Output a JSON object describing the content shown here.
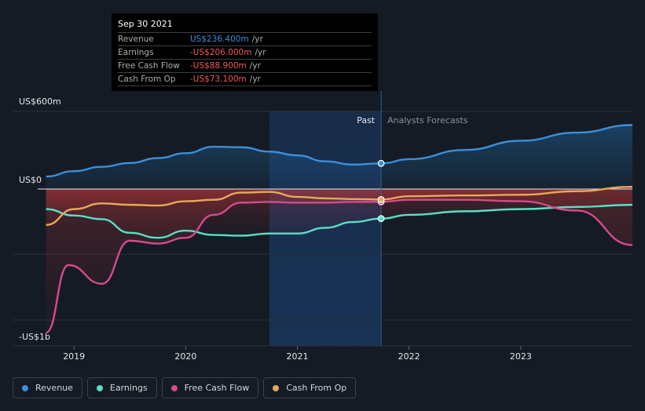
{
  "chart_data": {
    "type": "line",
    "title": "",
    "y_axis_labels": {
      "top": "US$600m",
      "zero": "US$0",
      "bottom": "-US$1b"
    },
    "ylim": [
      -1000,
      600
    ],
    "x_ticks": [
      {
        "label": "2019",
        "x": 2019.0
      },
      {
        "label": "2020",
        "x": 2020.0
      },
      {
        "label": "2021",
        "x": 2021.0
      },
      {
        "label": "2022",
        "x": 2022.0
      },
      {
        "label": "2023",
        "x": 2023.0
      }
    ],
    "xlim": [
      2018.45,
      2024.0
    ],
    "past_label": "Past",
    "forecast_label": "Analysts Forecasts",
    "divider_x": 2021.75,
    "highlight_range": [
      2020.75,
      2021.75
    ],
    "series": [
      {
        "name": "Revenue",
        "color": "#3b8fdc",
        "points": [
          [
            2018.75,
            115
          ],
          [
            2019.0,
            165
          ],
          [
            2019.25,
            205
          ],
          [
            2019.5,
            240
          ],
          [
            2019.75,
            285
          ],
          [
            2020.0,
            330
          ],
          [
            2020.25,
            390
          ],
          [
            2020.5,
            385
          ],
          [
            2020.75,
            345
          ],
          [
            2021.0,
            310
          ],
          [
            2021.25,
            255
          ],
          [
            2021.5,
            225
          ],
          [
            2021.75,
            236.4
          ],
          [
            2022.0,
            275
          ],
          [
            2022.5,
            360
          ],
          [
            2023.0,
            445
          ],
          [
            2023.5,
            520
          ],
          [
            2024.0,
            590
          ]
        ]
      },
      {
        "name": "Earnings",
        "color": "#58e0c6",
        "points": [
          [
            2018.75,
            -140
          ],
          [
            2019.0,
            -185
          ],
          [
            2019.25,
            -210
          ],
          [
            2019.5,
            -305
          ],
          [
            2019.75,
            -340
          ],
          [
            2020.0,
            -290
          ],
          [
            2020.25,
            -320
          ],
          [
            2020.5,
            -325
          ],
          [
            2020.75,
            -310
          ],
          [
            2021.0,
            -310
          ],
          [
            2021.25,
            -270
          ],
          [
            2021.5,
            -230
          ],
          [
            2021.75,
            -206
          ],
          [
            2022.0,
            -180
          ],
          [
            2022.5,
            -155
          ],
          [
            2023.0,
            -140
          ],
          [
            2023.5,
            -125
          ],
          [
            2024.0,
            -110
          ]
        ]
      },
      {
        "name": "Free Cash Flow",
        "color": "#d34b8c",
        "points": [
          [
            2018.75,
            -1000
          ],
          [
            2018.95,
            -530
          ],
          [
            2019.25,
            -660
          ],
          [
            2019.5,
            -360
          ],
          [
            2019.75,
            -380
          ],
          [
            2020.0,
            -340
          ],
          [
            2020.25,
            -180
          ],
          [
            2020.5,
            -95
          ],
          [
            2020.75,
            -90
          ],
          [
            2021.0,
            -95
          ],
          [
            2021.25,
            -95
          ],
          [
            2021.5,
            -90
          ],
          [
            2021.75,
            -88.9
          ],
          [
            2022.0,
            -75
          ],
          [
            2022.5,
            -75
          ],
          [
            2023.0,
            -85
          ],
          [
            2023.5,
            -150
          ],
          [
            2024.0,
            -390
          ]
        ]
      },
      {
        "name": "Cash From Op",
        "color": "#e8a85a",
        "points": [
          [
            2018.75,
            -250
          ],
          [
            2019.0,
            -140
          ],
          [
            2019.25,
            -100
          ],
          [
            2019.5,
            -110
          ],
          [
            2019.75,
            -115
          ],
          [
            2020.0,
            -85
          ],
          [
            2020.25,
            -75
          ],
          [
            2020.5,
            -25
          ],
          [
            2020.75,
            -20
          ],
          [
            2021.0,
            -55
          ],
          [
            2021.25,
            -65
          ],
          [
            2021.5,
            -70
          ],
          [
            2021.75,
            -73.1
          ],
          [
            2022.0,
            -50
          ],
          [
            2022.5,
            -45
          ],
          [
            2023.0,
            -40
          ],
          [
            2023.5,
            -15
          ],
          [
            2024.0,
            20
          ]
        ]
      }
    ],
    "tooltip": {
      "date": "Sep 30 2021",
      "rows": [
        {
          "label": "Revenue",
          "value": "US$236.400m",
          "unit": "/yr",
          "color": "#3b8fdc"
        },
        {
          "label": "Earnings",
          "value": "-US$206.000m",
          "unit": "/yr",
          "color": "#f05a5a"
        },
        {
          "label": "Free Cash Flow",
          "value": "-US$88.900m",
          "unit": "/yr",
          "color": "#f05a5a"
        },
        {
          "label": "Cash From Op",
          "value": "-US$73.100m",
          "unit": "/yr",
          "color": "#f05a5a"
        }
      ]
    },
    "legend": [
      {
        "label": "Revenue",
        "color": "#3b8fdc"
      },
      {
        "label": "Earnings",
        "color": "#58e0c6"
      },
      {
        "label": "Free Cash Flow",
        "color": "#d34b8c"
      },
      {
        "label": "Cash From Op",
        "color": "#e8a85a"
      }
    ]
  }
}
